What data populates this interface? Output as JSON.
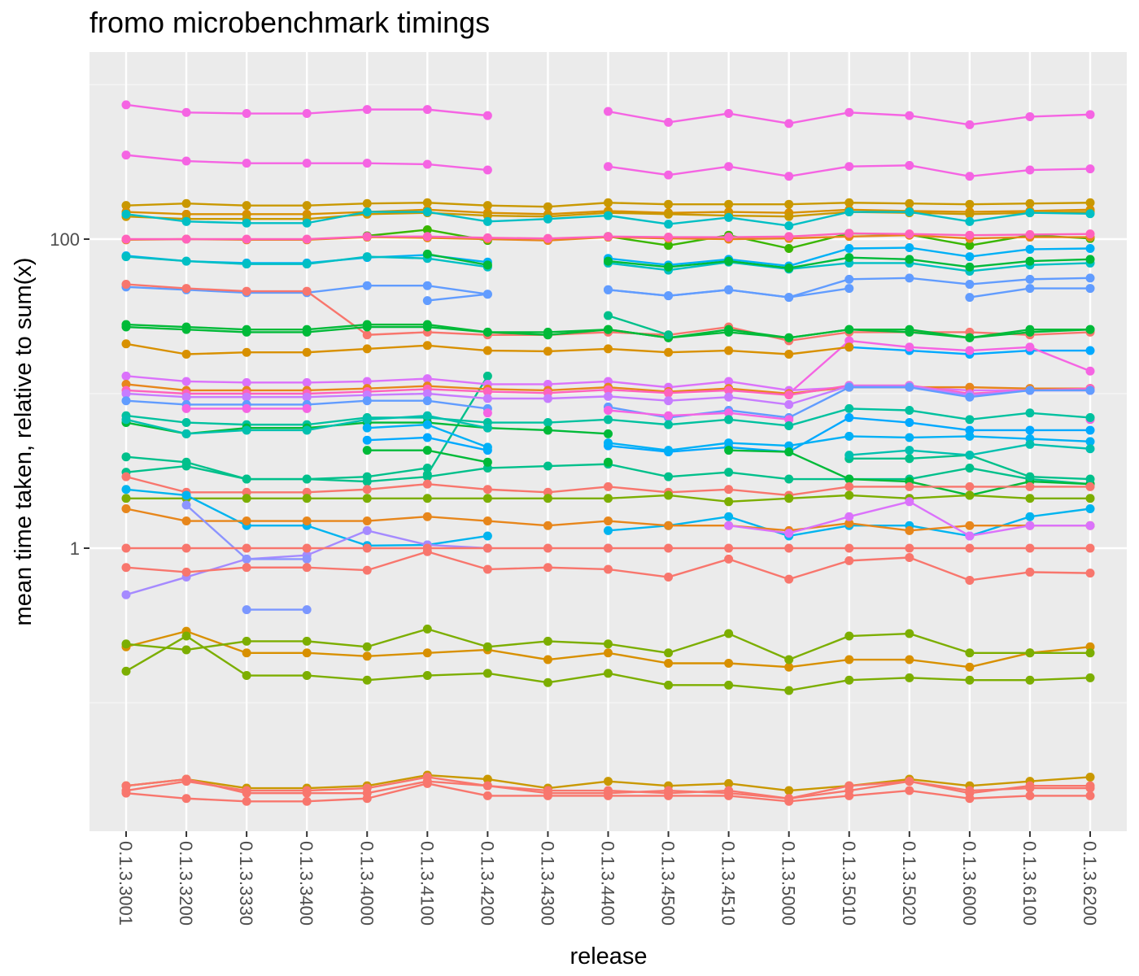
{
  "chart_data": {
    "type": "line",
    "title": "fromo microbenchmark timings",
    "xlabel": "release",
    "ylabel": "mean time taken, relative to sum(x)",
    "y_scale": "log10",
    "ylim": [
      0.01,
      1400
    ],
    "y_ticks": [
      {
        "value": 1,
        "label": "1"
      },
      {
        "value": 100,
        "label": "100"
      }
    ],
    "y_minor_gridlines": [
      0.1,
      10,
      1000
    ],
    "grid": true,
    "legend": "none",
    "categories": [
      "0.1.3.3001",
      "0.1.3.3200",
      "0.1.3.3330",
      "0.1.3.3400",
      "0.1.3.4000",
      "0.1.3.4100",
      "0.1.3.4200",
      "0.1.3.4300",
      "0.1.3.4400",
      "0.1.3.4500",
      "0.1.3.4510",
      "0.1.3.5000",
      "0.1.3.5010",
      "0.1.3.5020",
      "0.1.3.6000",
      "0.1.3.6100",
      "0.1.3.6200"
    ],
    "series": [
      {
        "color": "#F564E3",
        "values": [
          740,
          660,
          650,
          650,
          690,
          690,
          630,
          null,
          670,
          570,
          650,
          560,
          660,
          630,
          550,
          620,
          640
        ]
      },
      {
        "color": "#F564E3",
        "values": [
          350,
          320,
          310,
          310,
          310,
          305,
          280,
          null,
          295,
          260,
          295,
          255,
          295,
          300,
          255,
          280,
          285
        ]
      },
      {
        "color": "#C99800",
        "values": [
          165,
          170,
          165,
          165,
          170,
          172,
          165,
          162,
          172,
          168,
          168,
          168,
          172,
          170,
          168,
          170,
          172
        ]
      },
      {
        "color": "#D89000",
        "values": [
          150,
          145,
          145,
          145,
          150,
          155,
          148,
          145,
          152,
          148,
          150,
          148,
          155,
          152,
          150,
          152,
          155
        ]
      },
      {
        "color": "#C99800",
        "values": [
          140,
          135,
          135,
          135,
          145,
          148,
          142,
          140,
          148,
          145,
          142,
          140,
          150,
          148,
          145,
          148,
          150
        ]
      },
      {
        "color": "#00BFC4",
        "values": [
          145,
          130,
          127,
          127,
          150,
          150,
          130,
          135,
          142,
          125,
          138,
          122,
          150,
          150,
          130,
          148,
          146
        ]
      },
      {
        "color": "#39B600",
        "values": [
          null,
          null,
          null,
          null,
          105,
          115,
          98,
          null,
          104,
          91,
          106,
          87,
          109,
          107,
          91,
          106,
          101
        ]
      },
      {
        "color": "#E7861B",
        "values": [
          99,
          100,
          99,
          99,
          103,
          102,
          100,
          98,
          103,
          101,
          100,
          101,
          104,
          106,
          101,
          103,
          103
        ]
      },
      {
        "color": "#FF62BC",
        "values": [
          100,
          100,
          100,
          100,
          104,
          104,
          102,
          101,
          104,
          103,
          103,
          104,
          109,
          108,
          106,
          107,
          108
        ]
      },
      {
        "color": "#00B0F6",
        "values": [
          78,
          72,
          70,
          70,
          76,
          79,
          71,
          null,
          75,
          68,
          74,
          67,
          87,
          88,
          77,
          86,
          87
        ]
      },
      {
        "color": "#00BFC4",
        "values": [
          77,
          72,
          69,
          69,
          77,
          75,
          66,
          null,
          70,
          63,
          71,
          64,
          70,
          70,
          62,
          68,
          70
        ]
      },
      {
        "color": "#00BA38",
        "values": [
          null,
          null,
          null,
          null,
          null,
          80,
          68,
          null,
          72,
          66,
          72,
          65,
          76,
          74,
          66,
          72,
          74
        ]
      },
      {
        "color": "#619CFF",
        "values": [
          49,
          47,
          45,
          45,
          50,
          50,
          44,
          null,
          47,
          43,
          47,
          42,
          55,
          56,
          51,
          55,
          56
        ]
      },
      {
        "color": "#619CFF",
        "values": [
          null,
          null,
          null,
          null,
          null,
          40,
          44,
          null,
          47,
          43,
          47,
          42,
          48,
          null,
          42,
          48,
          48
        ]
      },
      {
        "color": "#F8766D",
        "values": [
          51,
          48,
          46,
          46,
          24,
          25,
          24,
          24,
          25,
          24,
          27,
          22,
          25,
          25,
          25,
          24,
          25
        ]
      },
      {
        "color": "#00BA38",
        "values": [
          28,
          27,
          26,
          26,
          28,
          28,
          25,
          25,
          26,
          23,
          25,
          23,
          26,
          26,
          23,
          26,
          26
        ]
      },
      {
        "color": "#00BA38",
        "values": [
          27,
          26,
          25,
          25,
          27,
          27,
          25,
          24,
          26,
          23,
          26,
          23,
          26,
          25,
          23,
          25,
          26
        ]
      },
      {
        "color": "#00A9FF",
        "values": [
          null,
          null,
          null,
          null,
          null,
          null,
          null,
          null,
          null,
          null,
          null,
          null,
          20,
          19,
          18,
          19,
          19
        ]
      },
      {
        "color": "#F564E3",
        "values": [
          null,
          null,
          null,
          null,
          null,
          null,
          null,
          null,
          null,
          null,
          null,
          10,
          22,
          20,
          19,
          20,
          14
        ]
      },
      {
        "color": "#00C08B",
        "values": [
          null,
          null,
          null,
          null,
          null,
          3,
          13,
          null,
          32,
          24,
          null,
          null,
          null,
          null,
          null,
          null,
          null
        ]
      },
      {
        "color": "#D89000",
        "values": [
          21,
          18,
          18.5,
          18.5,
          19.5,
          20.5,
          19,
          18.8,
          19.5,
          18.5,
          19,
          18,
          20,
          null,
          null,
          null,
          null
        ]
      },
      {
        "color": "#DB72FB",
        "values": [
          13,
          12,
          11.8,
          11.8,
          12,
          12.5,
          11.5,
          11.5,
          12,
          11,
          12,
          10.5,
          11,
          11,
          10.5,
          10.5,
          10.5
        ]
      },
      {
        "color": "#E7861B",
        "values": [
          11.5,
          10.5,
          10.5,
          10.5,
          10.8,
          11.2,
          10.7,
          10.5,
          11,
          10.3,
          10.8,
          10,
          11,
          11,
          11,
          10.8,
          10.8
        ]
      },
      {
        "color": "#FF62BC",
        "values": [
          10.5,
          10,
          10,
          10,
          10.3,
          10.7,
          10.3,
          10.1,
          10.6,
          10.1,
          10.5,
          9.8,
          11.3,
          11.3,
          10,
          10.5,
          10.8
        ]
      },
      {
        "color": "#C77CFF",
        "values": [
          10,
          9.5,
          9.5,
          9.5,
          9.8,
          10,
          9.3,
          9.3,
          9.6,
          9,
          9.5,
          8.5,
          11.2,
          11.2,
          9.8,
          10.5,
          10.5
        ]
      },
      {
        "color": "#619CFF",
        "values": [
          9,
          8.5,
          8.5,
          8.5,
          9,
          9,
          8,
          null,
          8.2,
          7,
          7.8,
          7,
          11,
          11,
          9.5,
          10.5,
          10.5
        ]
      },
      {
        "color": "#F564E3",
        "values": [
          null,
          8,
          8,
          8,
          null,
          null,
          7.5,
          null,
          7.8,
          7.2,
          7.5,
          6.8,
          null,
          null,
          null,
          null,
          6.8
        ]
      },
      {
        "color": "#00C19F",
        "values": [
          7.2,
          6.5,
          6.3,
          6.3,
          7,
          7,
          6.5,
          6.5,
          6.8,
          6.3,
          6.8,
          6.2,
          8,
          7.8,
          6.8,
          7.5,
          7
        ]
      },
      {
        "color": "#00BA38",
        "values": [
          6.5,
          5.5,
          6,
          6,
          6.5,
          6.5,
          6,
          5.8,
          5.5,
          null,
          null,
          null,
          null,
          null,
          null,
          null,
          null
        ]
      },
      {
        "color": "#00A9FF",
        "values": [
          null,
          null,
          null,
          null,
          5,
          5.2,
          4.3,
          null,
          4.6,
          4.2,
          4.5,
          4.2,
          7,
          6.5,
          5.8,
          5.8,
          5.8
        ]
      },
      {
        "color": "#00B0F6",
        "values": [
          null,
          null,
          null,
          null,
          6,
          6.3,
          4.5,
          null,
          4.8,
          4.3,
          4.8,
          4.6,
          5.3,
          5.2,
          5.3,
          5.1,
          4.9
        ]
      },
      {
        "color": "#00C08B",
        "values": [
          3.9,
          3.6,
          2.8,
          2.8,
          2.7,
          2.9,
          3.3,
          3.4,
          3.5,
          2.9,
          3.1,
          2.8,
          2.8,
          2.8,
          3.3,
          2.8,
          2.6
        ]
      },
      {
        "color": "#00BA38",
        "values": [
          null,
          null,
          null,
          null,
          4.3,
          4.3,
          3.6,
          null,
          3.6,
          null,
          4.3,
          4.2,
          2.8,
          2.7,
          2.2,
          2.7,
          2.6
        ]
      },
      {
        "color": "#00C08B",
        "values": [
          3.1,
          3.4,
          2.8,
          2.8,
          2.9,
          3.3,
          null,
          null,
          null,
          null,
          null,
          null,
          3.8,
          3.8,
          4,
          2.9,
          2.8
        ]
      },
      {
        "color": "#00C0AF",
        "values": [
          6.8,
          5.5,
          5.8,
          5.8,
          6.8,
          7.2,
          6,
          null,
          null,
          null,
          null,
          null,
          4,
          4.3,
          4,
          4.7,
          4.4
        ]
      },
      {
        "color": "#F8766D",
        "values": [
          2.9,
          2.3,
          2.3,
          2.3,
          2.4,
          2.6,
          2.4,
          2.3,
          2.5,
          2.3,
          2.4,
          2.2,
          2.5,
          2.5,
          2.5,
          2.5,
          2.5
        ]
      },
      {
        "color": "#7CAE00",
        "values": [
          2.1,
          2.1,
          2.1,
          2.1,
          2.1,
          2.1,
          2.1,
          2.1,
          2.1,
          2.2,
          2,
          2.1,
          2.2,
          2.1,
          2.2,
          2.1,
          2.1
        ]
      },
      {
        "color": "#00B4EF",
        "values": [
          2.4,
          2.2,
          1.4,
          1.4,
          1.04,
          1.05,
          1.2,
          null,
          1.3,
          1.4,
          1.6,
          1.2,
          1.4,
          1.4,
          1.2,
          1.6,
          1.8
        ]
      },
      {
        "color": "#E7861B",
        "values": [
          1.8,
          1.5,
          1.5,
          1.5,
          1.5,
          1.6,
          1.5,
          1.4,
          1.5,
          1.4,
          1.4,
          1.3,
          1.45,
          1.3,
          1.4,
          1.4,
          1.4
        ]
      },
      {
        "color": "#DB72FB",
        "values": [
          null,
          null,
          null,
          null,
          null,
          null,
          null,
          null,
          null,
          null,
          1.4,
          1.25,
          1.6,
          2,
          1.2,
          1.4,
          1.4
        ]
      },
      {
        "color": "#A58AFF",
        "values": [
          0.5,
          0.65,
          0.85,
          0.9,
          1.3,
          1.05,
          1,
          null,
          1,
          null,
          null,
          null,
          null,
          null,
          null,
          null,
          null
        ]
      },
      {
        "color": "#8C94FF",
        "values": [
          null,
          1.9,
          0.85,
          0.85,
          null,
          null,
          null,
          null,
          null,
          null,
          null,
          null,
          null,
          null,
          null,
          null,
          null
        ]
      },
      {
        "color": "#7B97FF",
        "values": [
          null,
          null,
          0.4,
          0.4,
          null,
          null,
          null,
          null,
          null,
          null,
          null,
          null,
          null,
          null,
          null,
          null,
          null
        ]
      },
      {
        "color": "#F8766D",
        "values": [
          1,
          1,
          1,
          1,
          1,
          1,
          1,
          1,
          1,
          1,
          1,
          1,
          1,
          1,
          1,
          1,
          1
        ]
      },
      {
        "color": "#F8766D",
        "values": [
          0.75,
          0.7,
          0.75,
          0.75,
          0.72,
          0.95,
          0.73,
          0.75,
          0.73,
          0.65,
          0.85,
          0.63,
          0.83,
          0.87,
          0.62,
          0.7,
          0.69
        ]
      },
      {
        "color": "#D89000",
        "values": [
          0.23,
          0.29,
          0.21,
          0.21,
          0.2,
          0.21,
          0.22,
          0.19,
          0.21,
          0.18,
          0.18,
          0.17,
          0.19,
          0.19,
          0.17,
          0.21,
          0.23
        ]
      },
      {
        "color": "#7CAE00",
        "values": [
          0.24,
          0.22,
          0.25,
          0.25,
          0.23,
          0.3,
          0.23,
          0.25,
          0.24,
          0.21,
          0.28,
          0.19,
          0.27,
          0.28,
          0.21,
          0.21,
          0.21
        ]
      },
      {
        "color": "#7CAE00",
        "values": [
          0.16,
          0.27,
          0.15,
          0.15,
          0.14,
          0.15,
          0.155,
          0.135,
          0.155,
          0.13,
          0.13,
          0.12,
          0.14,
          0.145,
          0.14,
          0.14,
          0.145
        ]
      },
      {
        "color": "#C99800",
        "values": [
          0.029,
          0.032,
          0.028,
          0.028,
          0.029,
          0.034,
          0.032,
          0.028,
          0.031,
          0.029,
          0.03,
          0.027,
          0.029,
          0.032,
          0.029,
          0.031,
          0.033
        ]
      },
      {
        "color": "#F8766D",
        "values": [
          0.027,
          0.031,
          0.027,
          0.027,
          0.028,
          0.033,
          0.029,
          0.027,
          0.027,
          0.026,
          0.027,
          0.024,
          0.027,
          0.031,
          0.026,
          0.029,
          0.029
        ]
      },
      {
        "color": "#F8766D",
        "values": [
          0.029,
          0.032,
          0.026,
          0.026,
          0.026,
          0.031,
          0.029,
          0.026,
          0.026,
          0.027,
          0.026,
          0.024,
          0.029,
          0.031,
          0.027,
          0.028,
          0.028
        ]
      },
      {
        "color": "#F8766D",
        "values": [
          0.026,
          0.024,
          0.023,
          0.023,
          0.024,
          0.03,
          0.025,
          0.025,
          0.025,
          0.025,
          0.025,
          0.023,
          0.025,
          0.027,
          0.024,
          0.025,
          0.025
        ]
      }
    ]
  },
  "colors": {
    "panel_background": "#EBEBEB",
    "grid_major": "#FFFFFF",
    "grid_minor": "#F5F5F5",
    "tick_mark": "#333333",
    "tick_label": "#4D4D4D"
  }
}
